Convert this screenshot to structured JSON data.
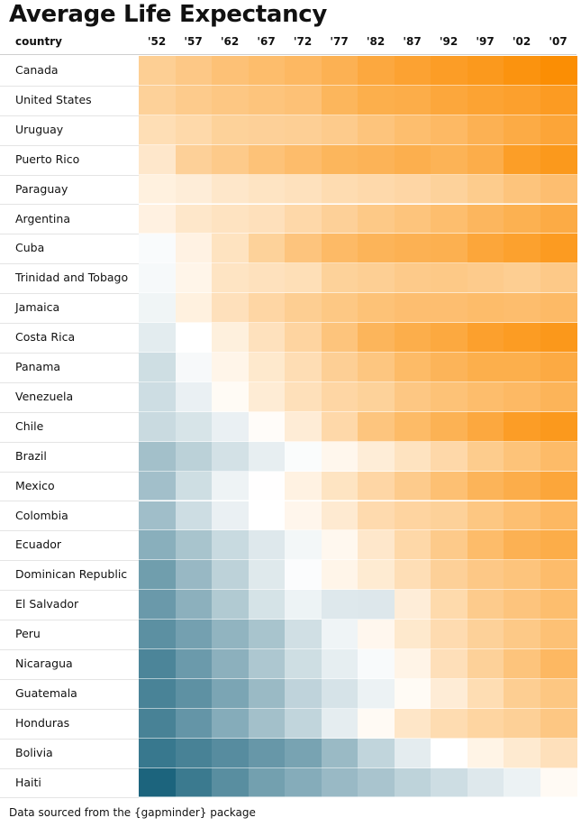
{
  "title": "Average Life Expectancy",
  "footer": "Data sourced from the {gapminder} package",
  "chart_data": {
    "type": "heatmap",
    "title": "Average Life Expectancy",
    "row_header": "country",
    "col_labels": [
      "'52",
      "'57",
      "'62",
      "'67",
      "'72",
      "'77",
      "'82",
      "'87",
      "'92",
      "'97",
      "'02",
      "'07"
    ],
    "color_low": "#16607a",
    "color_mid": "#ffffff",
    "color_high": "#fb8c00",
    "color_mid_value": 60,
    "color_range": [
      37,
      81
    ],
    "rows": [
      {
        "country": "Canada",
        "values": [
          68.8,
          70.0,
          71.3,
          72.1,
          72.9,
          74.2,
          75.8,
          76.9,
          77.9,
          78.6,
          79.8,
          80.7
        ]
      },
      {
        "country": "United States",
        "values": [
          68.4,
          69.5,
          70.2,
          70.8,
          71.3,
          73.4,
          74.7,
          75.0,
          76.1,
          76.8,
          77.3,
          78.2
        ]
      },
      {
        "country": "Uruguay",
        "values": [
          66.1,
          67.0,
          68.3,
          68.5,
          68.7,
          69.5,
          70.8,
          71.9,
          72.8,
          74.2,
          75.3,
          76.4
        ]
      },
      {
        "country": "Puerto Rico",
        "values": [
          64.3,
          68.5,
          69.6,
          71.1,
          72.2,
          73.4,
          73.8,
          74.6,
          73.9,
          74.9,
          77.8,
          78.7
        ]
      },
      {
        "country": "Paraguay",
        "values": [
          62.6,
          63.2,
          64.4,
          64.9,
          65.4,
          66.4,
          66.9,
          67.4,
          68.2,
          69.4,
          70.8,
          71.8
        ]
      },
      {
        "country": "Argentina",
        "values": [
          62.5,
          64.4,
          65.1,
          65.6,
          67.1,
          68.5,
          69.9,
          70.8,
          71.9,
          73.3,
          74.3,
          75.3
        ]
      },
      {
        "country": "Cuba",
        "values": [
          59.4,
          62.3,
          65.2,
          68.3,
          70.7,
          72.6,
          73.7,
          74.2,
          74.4,
          76.2,
          77.2,
          78.3
        ]
      },
      {
        "country": "Trinidad and Tobago",
        "values": [
          59.1,
          61.8,
          64.9,
          65.4,
          65.9,
          68.3,
          68.8,
          69.6,
          69.9,
          69.5,
          68.98,
          69.8
        ]
      },
      {
        "country": "Jamaica",
        "values": [
          58.5,
          62.6,
          65.6,
          67.5,
          69.0,
          70.1,
          71.2,
          71.8,
          71.8,
          72.3,
          72.0,
          72.6
        ]
      },
      {
        "country": "Costa Rica",
        "values": [
          57.2,
          60.0,
          62.8,
          65.4,
          67.8,
          70.8,
          73.5,
          74.8,
          75.7,
          77.3,
          78.1,
          78.8
        ]
      },
      {
        "country": "Panama",
        "values": [
          55.2,
          59.2,
          61.8,
          64.1,
          66.2,
          68.7,
          70.5,
          72.5,
          73.7,
          74.7,
          74.7,
          75.5
        ]
      },
      {
        "country": "Venezuela",
        "values": [
          55.1,
          57.9,
          60.8,
          63.5,
          65.7,
          67.5,
          68.3,
          70.2,
          71.2,
          72.1,
          72.8,
          73.7
        ]
      },
      {
        "country": "Chile",
        "values": [
          54.7,
          56.1,
          57.9,
          60.5,
          63.4,
          67.1,
          70.6,
          72.5,
          74.1,
          75.8,
          77.9,
          78.6
        ]
      },
      {
        "country": "Brazil",
        "values": [
          50.9,
          53.3,
          55.7,
          57.6,
          59.5,
          61.5,
          63.3,
          65.2,
          67.1,
          69.4,
          71.0,
          72.4
        ]
      },
      {
        "country": "Mexico",
        "values": [
          50.8,
          55.2,
          58.3,
          60.1,
          62.4,
          65.0,
          67.4,
          69.5,
          71.5,
          73.7,
          74.9,
          76.2
        ]
      },
      {
        "country": "Colombia",
        "values": [
          50.6,
          55.1,
          57.9,
          60.0,
          61.6,
          63.8,
          66.7,
          67.8,
          68.4,
          70.3,
          71.7,
          72.9
        ]
      },
      {
        "country": "Ecuador",
        "values": [
          48.4,
          51.4,
          54.6,
          56.7,
          58.8,
          61.3,
          64.3,
          67.2,
          69.6,
          72.3,
          74.2,
          75.0
        ]
      },
      {
        "country": "Dominican Republic",
        "values": [
          45.9,
          49.8,
          53.5,
          56.8,
          59.6,
          61.8,
          63.7,
          66.0,
          68.5,
          69.96,
          70.8,
          72.2
        ]
      },
      {
        "country": "El Salvador",
        "values": [
          45.3,
          48.6,
          52.3,
          55.9,
          58.2,
          56.7,
          56.6,
          63.2,
          66.8,
          69.5,
          70.7,
          71.9
        ]
      },
      {
        "country": "Peru",
        "values": [
          43.9,
          46.3,
          49.1,
          51.4,
          55.4,
          58.4,
          61.4,
          64.1,
          66.5,
          68.4,
          69.9,
          71.4
        ]
      },
      {
        "country": "Nicaragua",
        "values": [
          42.3,
          45.4,
          48.6,
          51.9,
          55.2,
          57.5,
          59.3,
          62.0,
          65.8,
          68.4,
          70.8,
          72.9
        ]
      },
      {
        "country": "Guatemala",
        "values": [
          42.0,
          44.1,
          47.0,
          50.0,
          53.7,
          56.0,
          58.1,
          60.8,
          63.4,
          66.3,
          68.98,
          70.3
        ]
      },
      {
        "country": "Honduras",
        "values": [
          41.9,
          44.7,
          48.0,
          50.9,
          53.9,
          57.4,
          60.9,
          64.5,
          66.4,
          67.7,
          68.6,
          70.2
        ]
      },
      {
        "country": "Bolivia",
        "values": [
          40.4,
          41.9,
          43.4,
          45.0,
          46.7,
          50.0,
          53.9,
          57.3,
          59.96,
          62.1,
          63.9,
          65.6
        ]
      },
      {
        "country": "Haiti",
        "values": [
          37.6,
          40.7,
          43.6,
          46.2,
          48.0,
          49.9,
          51.5,
          53.6,
          55.1,
          56.7,
          58.1,
          60.9
        ]
      }
    ]
  }
}
